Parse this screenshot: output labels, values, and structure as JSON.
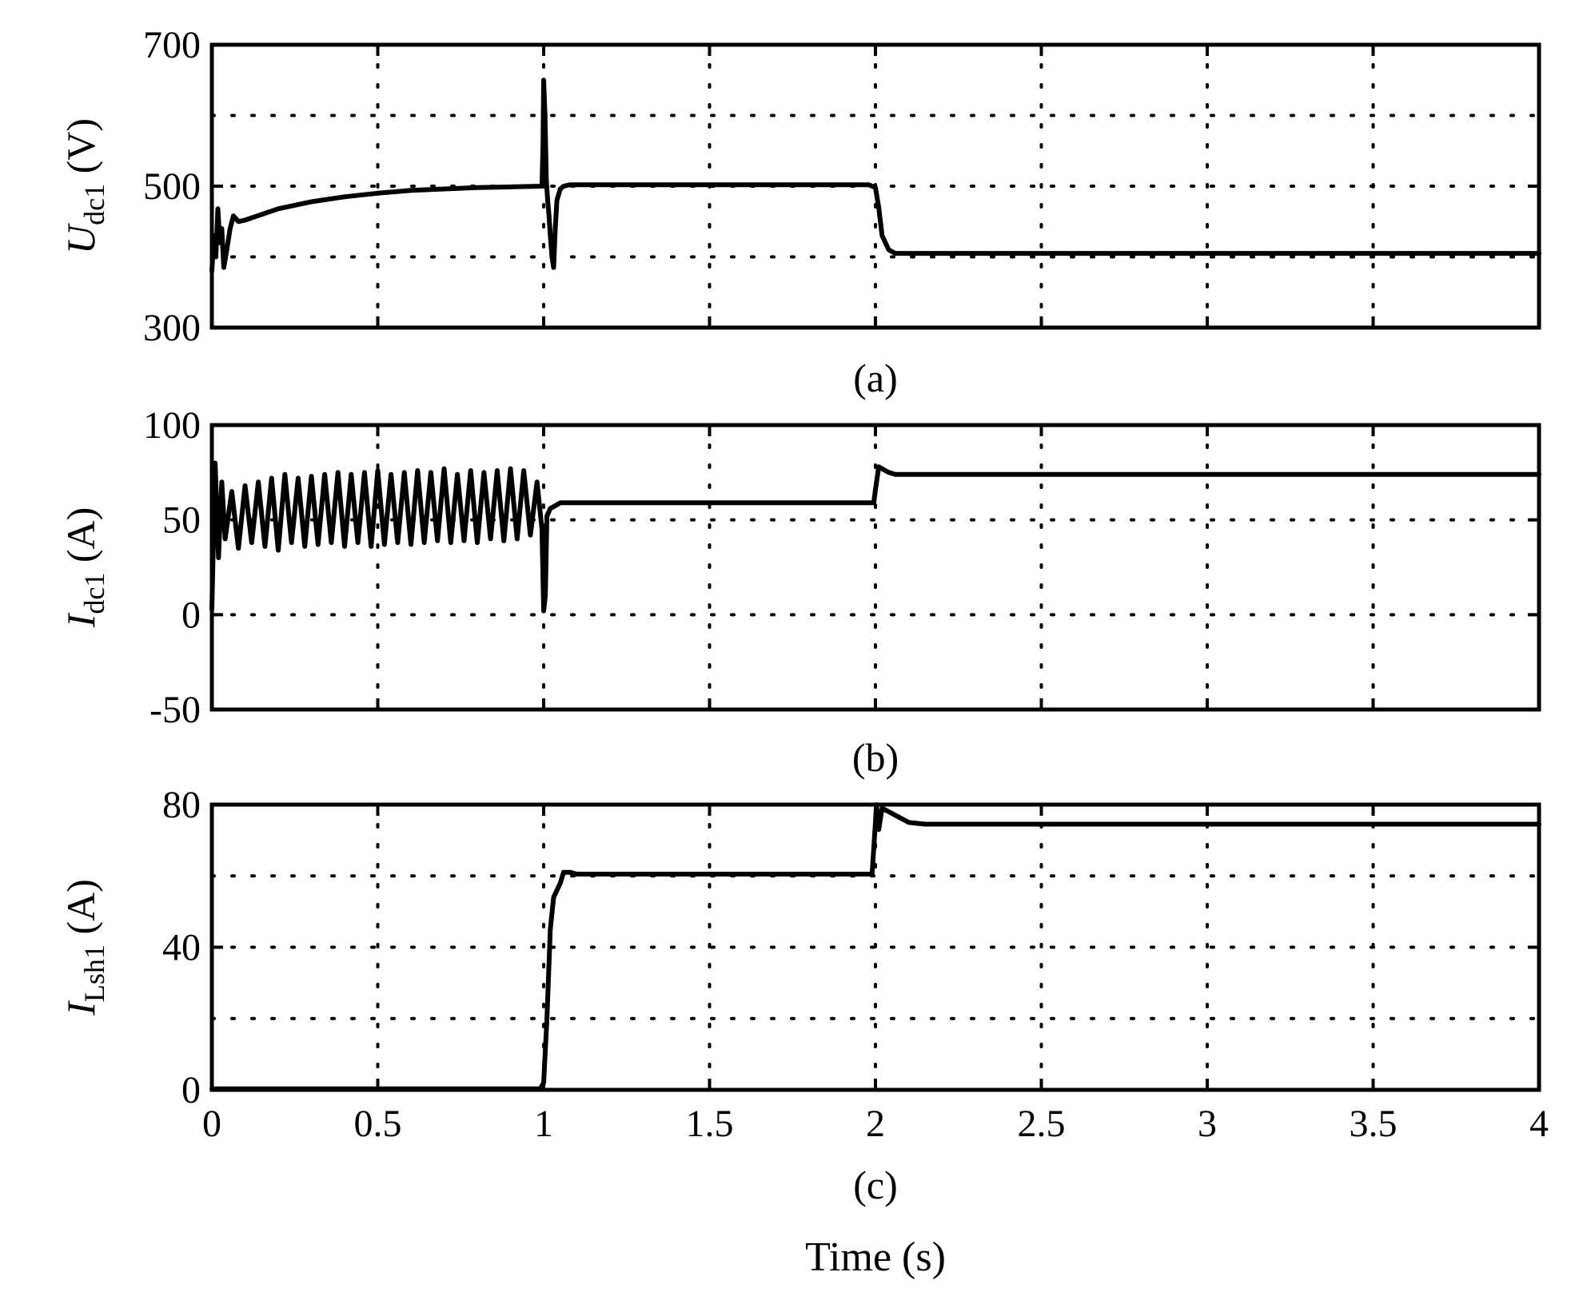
{
  "chart_data": [
    {
      "type": "line",
      "panel": "a",
      "caption": "(a)",
      "ylabel_main": "U",
      "ylabel_sub": "dc1",
      "ylabel_unit": " (V)",
      "xlim": [
        0,
        4
      ],
      "ylim": [
        300,
        700
      ],
      "yticks": [
        300,
        500,
        700
      ],
      "ytick_labels": [
        "300",
        "500",
        "700"
      ],
      "ygrid": [
        400,
        500,
        600
      ],
      "xgrid": [
        0.5,
        1,
        1.5,
        2,
        2.5,
        3,
        3.5
      ],
      "grid": true,
      "x": [
        0.0,
        0.006,
        0.012,
        0.018,
        0.024,
        0.03,
        0.036,
        0.045,
        0.055,
        0.065,
        0.08,
        0.1,
        0.2,
        0.3,
        0.4,
        0.5,
        0.6,
        0.7,
        0.8,
        0.9,
        0.995,
        0.998,
        1.0,
        1.004,
        1.008,
        1.012,
        1.016,
        1.02,
        1.025,
        1.03,
        1.035,
        1.04,
        1.05,
        1.06,
        1.08,
        1.1,
        1.5,
        1.98,
        2.0,
        2.01,
        2.02,
        2.04,
        2.06,
        2.1,
        2.5,
        3.0,
        3.5,
        4.0
      ],
      "y": [
        380,
        430,
        400,
        468,
        420,
        440,
        385,
        410,
        440,
        458,
        450,
        452,
        468,
        478,
        485,
        490,
        494,
        496,
        498,
        499,
        500,
        560,
        650,
        600,
        510,
        480,
        460,
        430,
        400,
        385,
        440,
        480,
        496,
        500,
        502,
        502,
        502,
        502,
        498,
        470,
        430,
        410,
        405,
        405,
        405,
        405,
        405,
        405
      ]
    },
    {
      "type": "line",
      "panel": "b",
      "caption": "(b)",
      "ylabel_main": "I",
      "ylabel_sub": "dc1",
      "ylabel_unit": " (A)",
      "xlim": [
        0,
        4
      ],
      "ylim": [
        -50,
        100
      ],
      "yticks": [
        -50,
        0,
        50,
        100
      ],
      "ytick_labels": [
        "-50",
        "0",
        "50",
        "100"
      ],
      "ygrid": [
        0,
        50
      ],
      "xgrid": [
        0.5,
        1,
        1.5,
        2,
        2.5,
        3,
        3.5
      ],
      "grid": true,
      "x": [
        0.0,
        0.01,
        0.02,
        0.03,
        0.04,
        0.06,
        0.08,
        0.1,
        0.12,
        0.14,
        0.16,
        0.18,
        0.2,
        0.22,
        0.24,
        0.26,
        0.28,
        0.3,
        0.32,
        0.34,
        0.36,
        0.38,
        0.4,
        0.42,
        0.44,
        0.46,
        0.48,
        0.5,
        0.52,
        0.54,
        0.56,
        0.58,
        0.6,
        0.62,
        0.64,
        0.66,
        0.68,
        0.7,
        0.72,
        0.74,
        0.76,
        0.78,
        0.8,
        0.82,
        0.84,
        0.86,
        0.88,
        0.9,
        0.92,
        0.94,
        0.96,
        0.98,
        0.995,
        1.0,
        1.005,
        1.01,
        1.02,
        1.03,
        1.05,
        1.08,
        1.1,
        1.5,
        1.98,
        1.995,
        2.0,
        2.01,
        2.02,
        2.04,
        2.06,
        2.1,
        2.5,
        3.0,
        3.5,
        4.0
      ],
      "y": [
        3,
        80,
        30,
        70,
        40,
        65,
        35,
        68,
        38,
        70,
        36,
        72,
        34,
        74,
        38,
        72,
        36,
        73,
        37,
        74,
        38,
        75,
        36,
        74,
        38,
        75,
        36,
        76,
        37,
        74,
        38,
        75,
        37,
        76,
        38,
        75,
        39,
        77,
        38,
        74,
        39,
        76,
        38,
        75,
        40,
        76,
        39,
        77,
        40,
        76,
        42,
        70,
        45,
        2,
        10,
        52,
        56,
        57,
        59,
        59,
        59,
        59,
        59,
        59,
        66,
        78,
        77,
        75,
        74,
        74,
        74,
        74,
        74,
        74
      ]
    },
    {
      "type": "line",
      "panel": "c",
      "caption": "(c)",
      "ylabel_main": "I",
      "ylabel_sub": "Lsh1",
      "ylabel_unit": " (A)",
      "xlabel": "Time (s)",
      "xlim": [
        0,
        4
      ],
      "ylim": [
        0,
        80
      ],
      "yticks": [
        0,
        40,
        80
      ],
      "ytick_labels": [
        "0",
        "40",
        "80"
      ],
      "ygrid": [
        20,
        40,
        60
      ],
      "xgrid": [
        0.5,
        1,
        1.5,
        2,
        2.5,
        3,
        3.5
      ],
      "xticks": [
        0,
        0.5,
        1,
        1.5,
        2,
        2.5,
        3,
        3.5,
        4
      ],
      "xtick_labels": [
        "0",
        "0.5",
        "1",
        "1.5",
        "2",
        "2.5",
        "3",
        "3.5",
        "4"
      ],
      "grid": true,
      "x": [
        0.0,
        0.5,
        0.99,
        1.0,
        1.01,
        1.02,
        1.03,
        1.04,
        1.05,
        1.06,
        1.08,
        1.1,
        1.5,
        1.99,
        2.0,
        2.003,
        2.01,
        2.02,
        2.04,
        2.06,
        2.08,
        2.1,
        2.15,
        2.5,
        3.0,
        3.5,
        4.0
      ],
      "y": [
        0.3,
        0.3,
        0.3,
        2,
        20,
        45,
        54,
        56,
        58,
        61,
        61,
        60.5,
        60.5,
        60.5,
        75,
        80,
        73,
        79,
        78,
        77,
        76,
        75,
        74.5,
        74.5,
        74.5,
        74.5,
        74.5
      ]
    }
  ]
}
